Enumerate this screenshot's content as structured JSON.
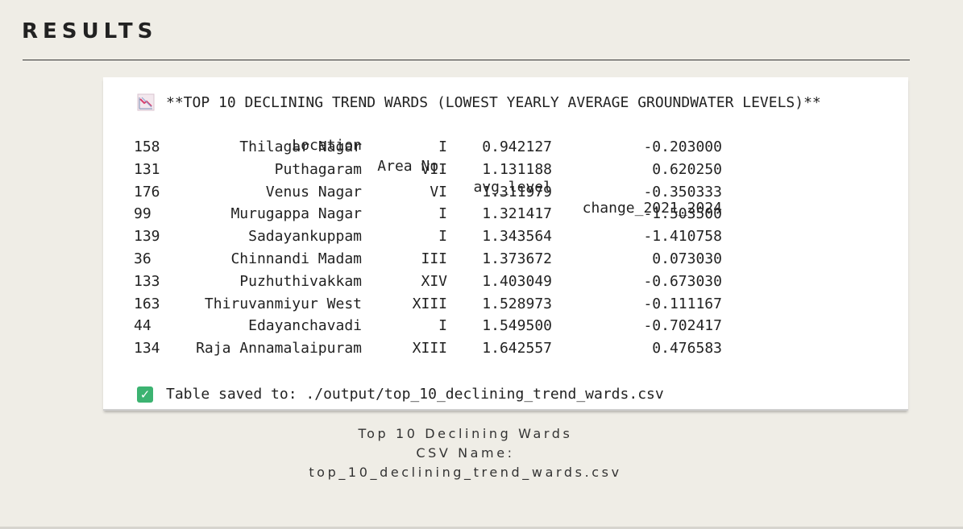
{
  "page": {
    "heading": "RESULTS"
  },
  "console": {
    "title": "**TOP 10 DECLINING TREND WARDS (LOWEST YEARLY AVERAGE GROUNDWATER LEVELS)**",
    "title_icon": "chart-decreasing-icon",
    "columns": [
      "Location",
      "Area No.",
      "avg_level",
      "change_2021_2024"
    ],
    "rows": [
      {
        "idx": "158",
        "location": "Thilagar Nagar",
        "area": "I",
        "avg": "0.942127",
        "change": "-0.203000"
      },
      {
        "idx": "131",
        "location": "Puthagaram",
        "area": "VII",
        "avg": "1.131188",
        "change": "0.620250"
      },
      {
        "idx": "176",
        "location": "Venus Nagar",
        "area": "VI",
        "avg": "1.311979",
        "change": "-0.350333"
      },
      {
        "idx": "99",
        "location": "Murugappa Nagar",
        "area": "I",
        "avg": "1.321417",
        "change": "-1.503500"
      },
      {
        "idx": "139",
        "location": "Sadayankuppam",
        "area": "I",
        "avg": "1.343564",
        "change": "-1.410758"
      },
      {
        "idx": "36",
        "location": "Chinnandi Madam",
        "area": "III",
        "avg": "1.373672",
        "change": "0.073030"
      },
      {
        "idx": "133",
        "location": "Puzhuthivakkam",
        "area": "XIV",
        "avg": "1.403049",
        "change": "-0.673030"
      },
      {
        "idx": "163",
        "location": "Thiruvanmiyur West",
        "area": "XIII",
        "avg": "1.528973",
        "change": "-0.111167"
      },
      {
        "idx": "44",
        "location": "Edayanchavadi",
        "area": "I",
        "avg": "1.549500",
        "change": "-0.702417"
      },
      {
        "idx": "134",
        "location": "Raja Annamalaipuram",
        "area": "XIII",
        "avg": "1.642557",
        "change": "0.476583"
      }
    ],
    "saved_icon": "check-mark-icon",
    "saved_text": "Table saved to: ./output/top_10_declining_trend_wards.csv"
  },
  "caption": {
    "line1": "Top 10 Declining Wards",
    "line2": "CSV Name:",
    "line3": "top_10_declining_trend_wards.csv"
  },
  "colors": {
    "background": "#efede6",
    "check_green": "#3cb371"
  }
}
